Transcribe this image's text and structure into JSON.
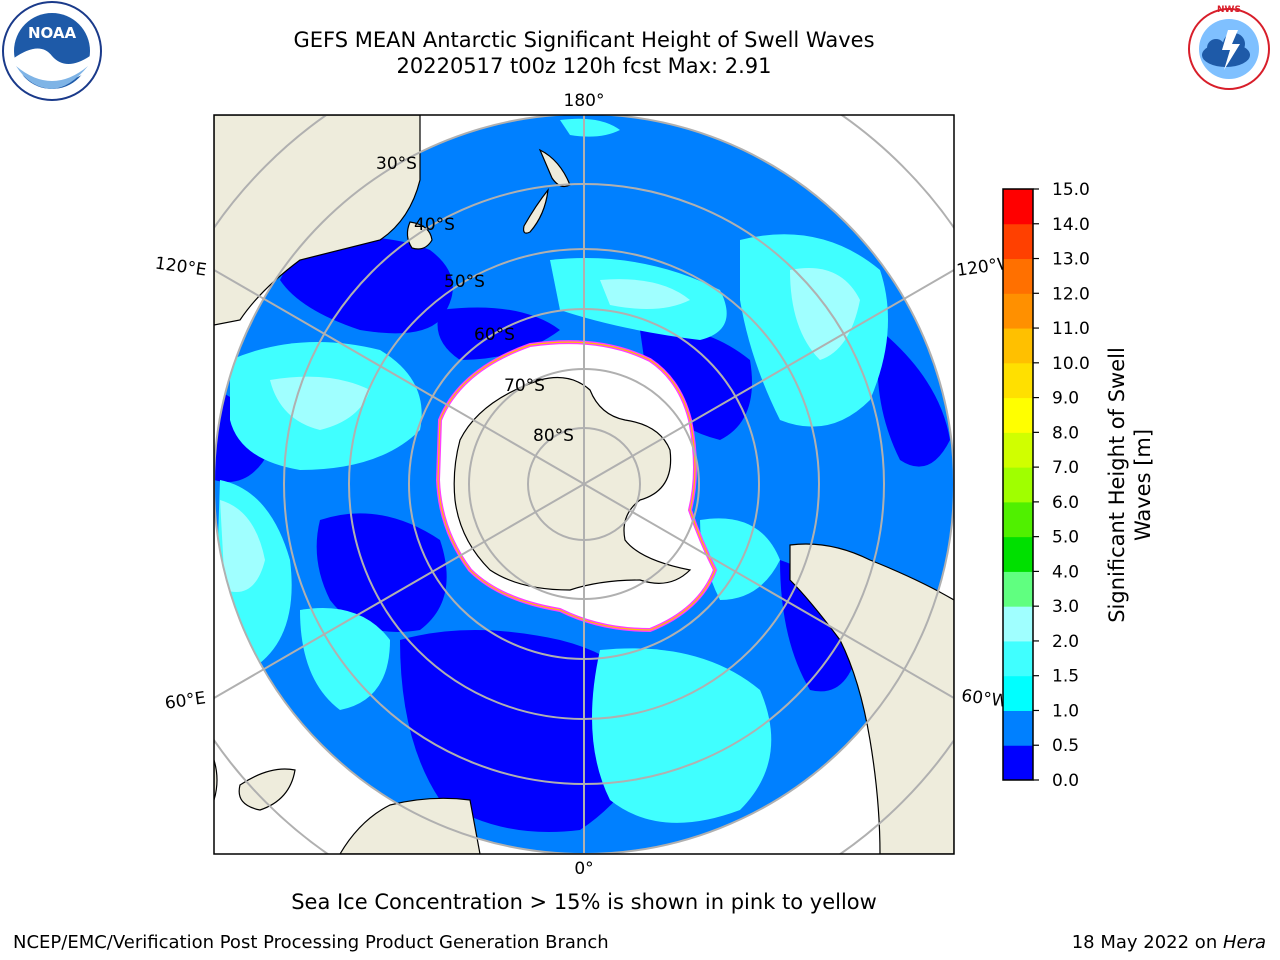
{
  "title_line1": "GEFS MEAN Antarctic Significant Height of Swell Waves",
  "title_line2": "20220517 t00z 120h fcst   Max: 2.91",
  "caption": "Sea Ice Concentration > 15% is shown in pink to yellow",
  "footer_left": "NCEP/EMC/Verification Post Processing Product Generation Branch",
  "footer_date": "18 May 2022 on ",
  "footer_host": "Hera",
  "logos": {
    "left": "NOAA",
    "right": "NATIONAL WEATHER SERVICE"
  },
  "map": {
    "lon_labels": {
      "top": "180°",
      "bottom": "0°",
      "upper_left": "120°E",
      "upper_right": "120°W",
      "lower_left": "60°E",
      "lower_right": "60°W"
    },
    "lat_labels": [
      "30°S",
      "40°S",
      "50°S",
      "60°S",
      "70°S",
      "80°S"
    ]
  },
  "colorbar": {
    "label_line1": "Significant Height of Swell",
    "label_line2": "Waves [m]",
    "ticks": [
      "0.0",
      "0.5",
      "1.0",
      "1.5",
      "2.0",
      "3.0",
      "4.0",
      "5.0",
      "6.0",
      "7.0",
      "8.0",
      "9.0",
      "10.0",
      "11.0",
      "12.0",
      "13.0",
      "14.0",
      "15.0"
    ],
    "colors": [
      "#0000ff",
      "#0080ff",
      "#00ffff",
      "#40ffff",
      "#a0ffff",
      "#60ff80",
      "#00e000",
      "#50f000",
      "#a0ff00",
      "#d0ff00",
      "#ffff00",
      "#ffe000",
      "#ffc000",
      "#ff9000",
      "#ff7000",
      "#ff4000",
      "#ff0000"
    ]
  },
  "colors": {
    "ocean_dark": "#0000ff",
    "ocean_mid": "#0080ff",
    "ocean_light": "#00ffff",
    "ocean_pale": "#80ffff",
    "land": "#eeecdc",
    "ice": "#ffffff",
    "ice_edge": "#ff40ff",
    "grid": "#b0b0b0"
  }
}
